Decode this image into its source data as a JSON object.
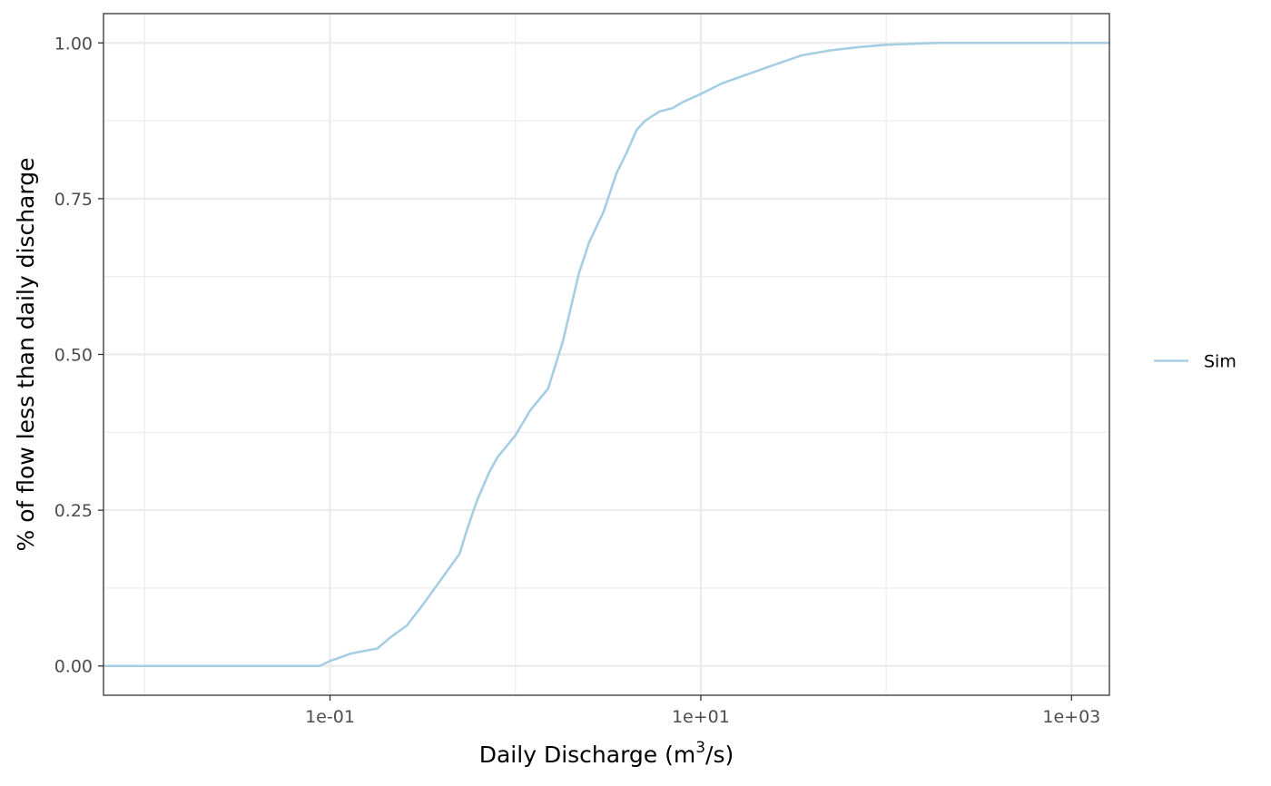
{
  "chart_data": {
    "type": "line",
    "title": "",
    "xlabel": "Daily Discharge (m",
    "xlabel_sup": "3",
    "xlabel_suffix": "/s)",
    "ylabel": "% of flow less than daily discharge",
    "x_scale": "log10",
    "xlim": [
      0.006,
      1600
    ],
    "ylim": [
      -0.047,
      1.047
    ],
    "x_ticks": [
      {
        "value": 0.1,
        "label": "1e-01"
      },
      {
        "value": 10,
        "label": "1e+01"
      },
      {
        "value": 1000,
        "label": "1e+03"
      }
    ],
    "x_minor_gridlines": [
      0.01,
      1,
      100
    ],
    "y_ticks": [
      {
        "value": 0,
        "label": "0.00"
      },
      {
        "value": 0.25,
        "label": "0.25"
      },
      {
        "value": 0.5,
        "label": "0.50"
      },
      {
        "value": 0.75,
        "label": "0.75"
      },
      {
        "value": 1,
        "label": "1.00"
      }
    ],
    "y_minor_gridlines": [
      0.125,
      0.375,
      0.625,
      0.875
    ],
    "grid": true,
    "legend": {
      "position": "right",
      "entries": [
        "Sim"
      ]
    },
    "series": [
      {
        "name": "Sim",
        "color": "#a6cee3",
        "x": [
          0.006,
          0.08,
          0.088,
          0.1,
          0.13,
          0.18,
          0.21,
          0.26,
          0.32,
          0.4,
          0.5,
          0.55,
          0.62,
          0.72,
          0.8,
          1.0,
          1.2,
          1.5,
          1.8,
          2.2,
          2.5,
          3.0,
          3.5,
          4.0,
          4.5,
          5.0,
          6.0,
          7.0,
          8.0,
          10.0,
          13.0,
          18.0,
          25.0,
          35.0,
          50.0,
          70.0,
          100.0,
          150.0,
          200.0,
          1600.0
        ],
        "y": [
          0.0,
          0.0,
          0.0,
          0.008,
          0.02,
          0.028,
          0.045,
          0.065,
          0.1,
          0.14,
          0.18,
          0.22,
          0.265,
          0.31,
          0.335,
          0.37,
          0.41,
          0.445,
          0.52,
          0.63,
          0.68,
          0.73,
          0.79,
          0.825,
          0.86,
          0.875,
          0.89,
          0.895,
          0.905,
          0.918,
          0.935,
          0.95,
          0.965,
          0.98,
          0.988,
          0.993,
          0.997,
          0.999,
          1.0,
          1.0
        ]
      }
    ]
  }
}
